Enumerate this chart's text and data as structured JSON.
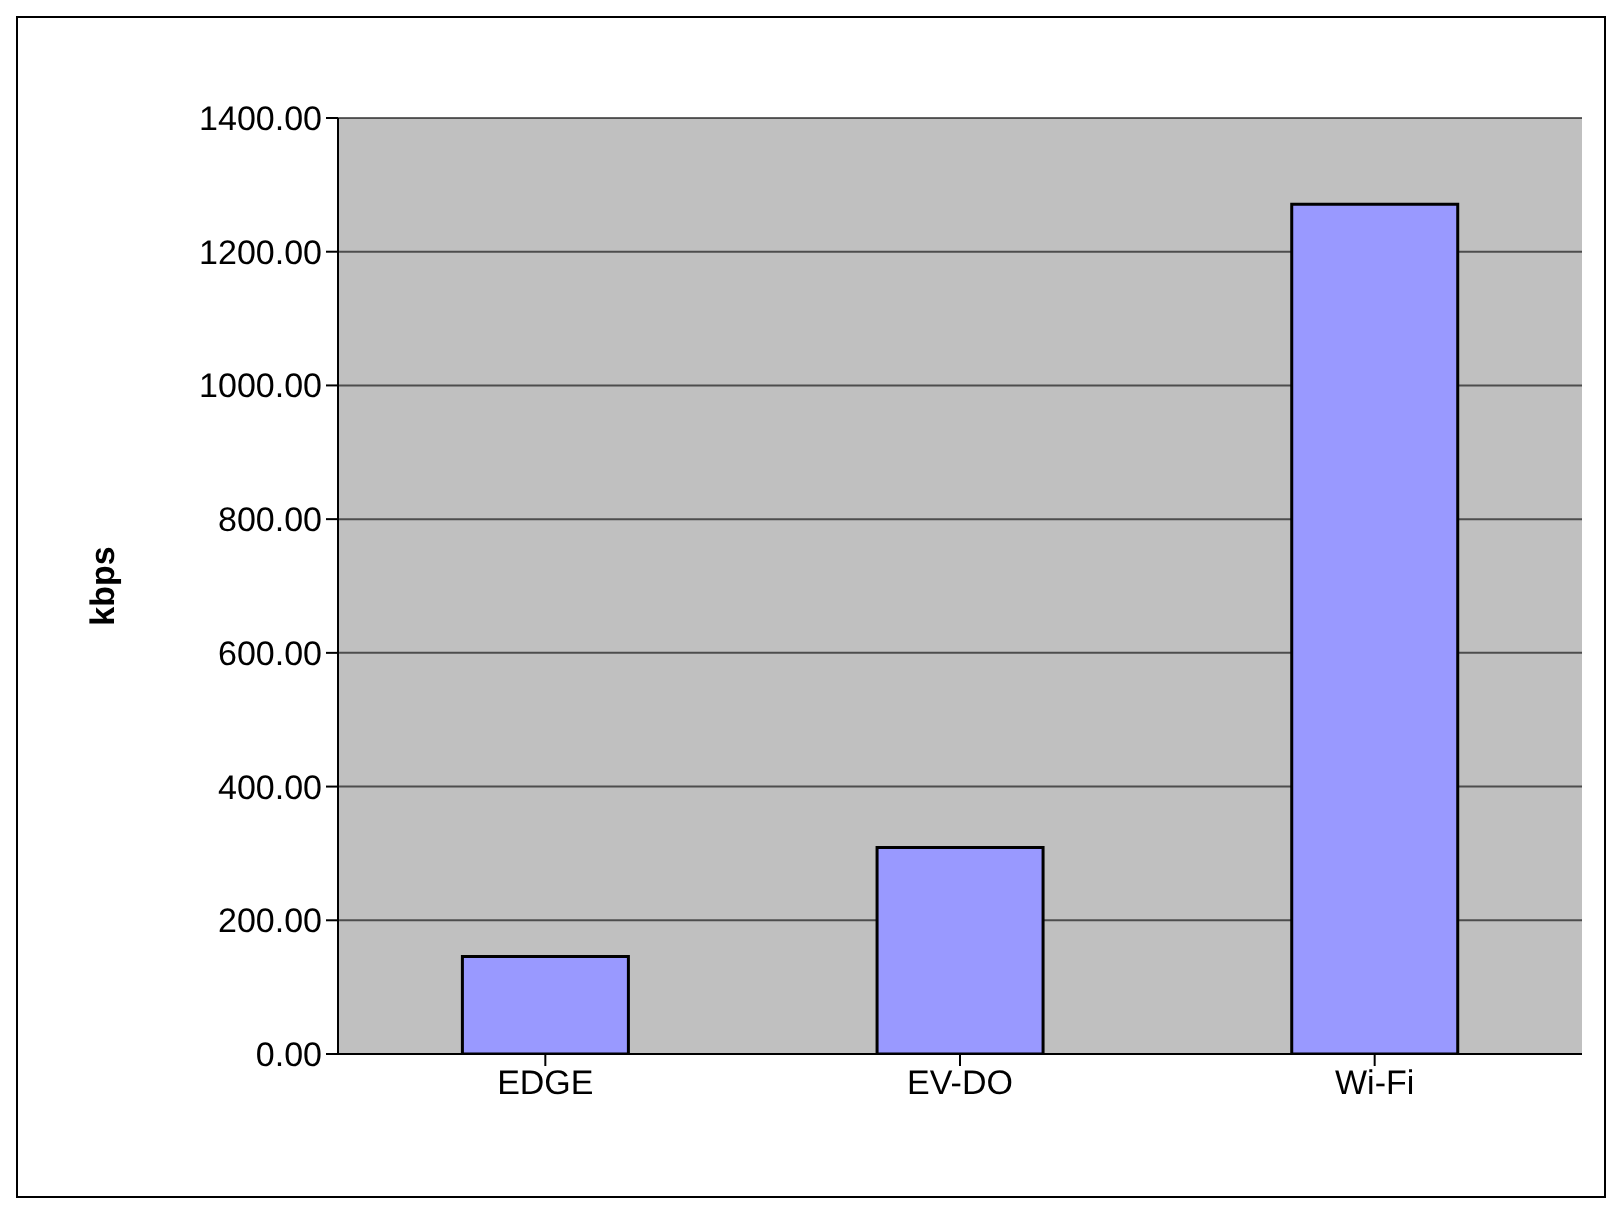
{
  "chart_data": {
    "type": "bar",
    "ylabel": "kbps",
    "categories": [
      "EDGE",
      "EV-DO",
      "Wi-Fi"
    ],
    "values": [
      146,
      309,
      1271
    ],
    "color": "#9999ff",
    "ylim": [
      0,
      1400
    ],
    "yticks": [
      {
        "value": 0,
        "label": "0.00"
      },
      {
        "value": 200,
        "label": "200.00"
      },
      {
        "value": 400,
        "label": "400.00"
      },
      {
        "value": 600,
        "label": "600.00"
      },
      {
        "value": 800,
        "label": "800.00"
      },
      {
        "value": 1000,
        "label": "1000.00"
      },
      {
        "value": 1200,
        "label": "1200.00"
      },
      {
        "value": 1400,
        "label": "1400.00"
      }
    ],
    "grid": "y",
    "legend": false
  }
}
